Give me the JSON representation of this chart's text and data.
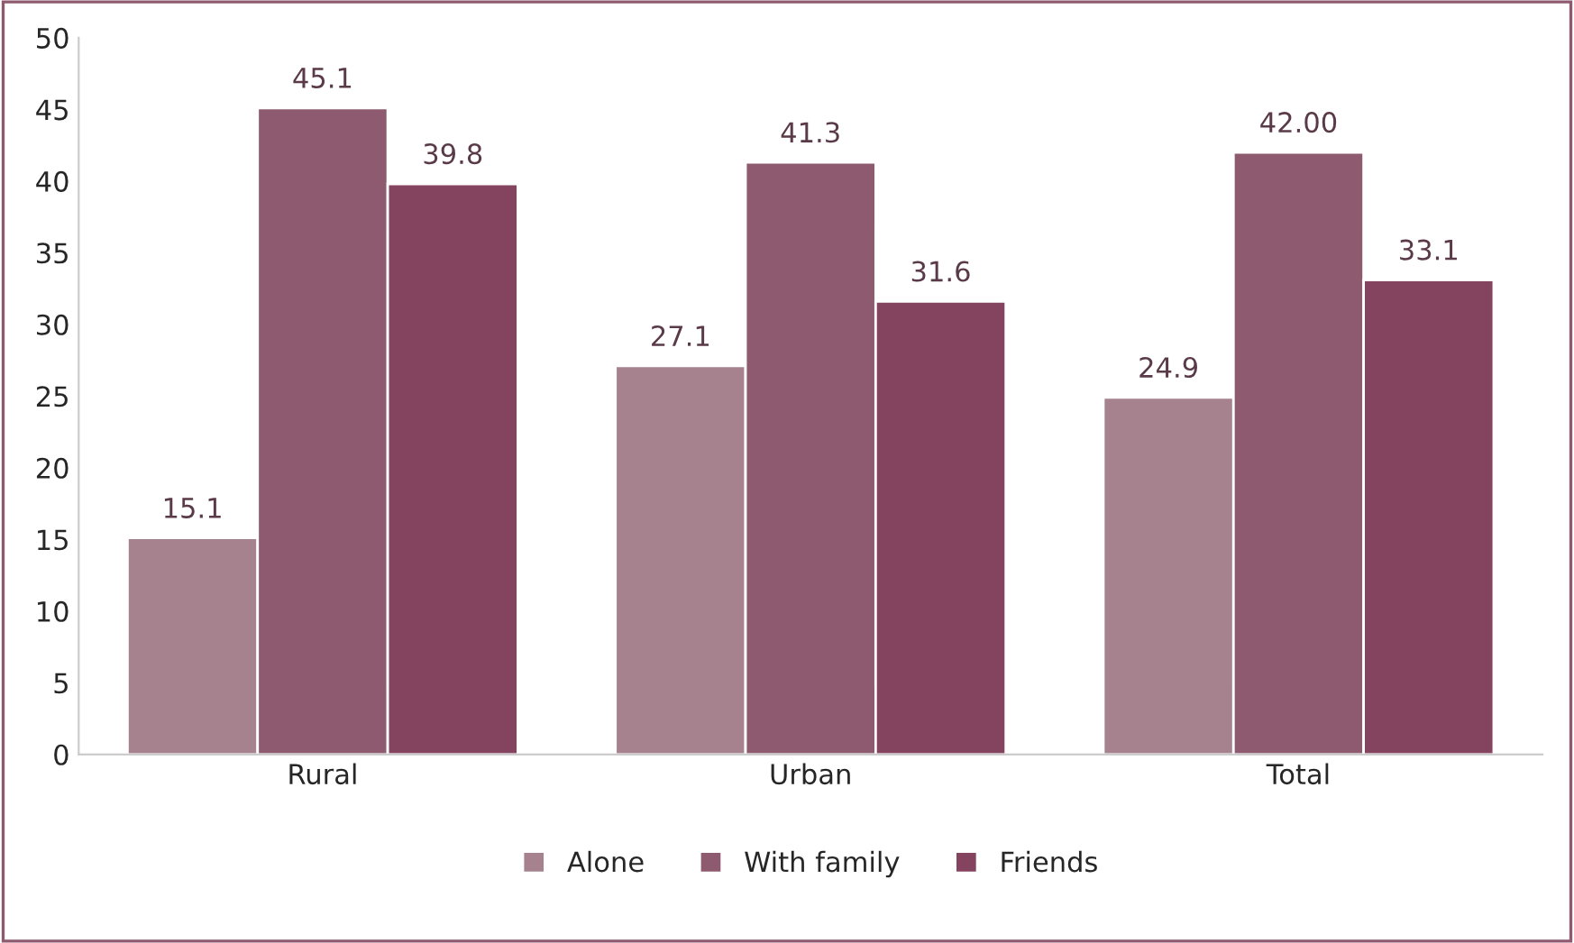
{
  "chart_data": {
    "type": "bar",
    "categories": [
      "Rural",
      "Urban",
      "Total"
    ],
    "series": [
      {
        "name": "Alone",
        "color": "#a6828e",
        "values": [
          15.1,
          27.1,
          24.9
        ],
        "value_labels": [
          "15.1",
          "27.1",
          "24.9"
        ]
      },
      {
        "name": "With family",
        "color": "#8e5a6f",
        "values": [
          45.1,
          41.3,
          42.0
        ],
        "value_labels": [
          "45.1",
          "41.3",
          "42.00"
        ]
      },
      {
        "name": "Friends",
        "color": "#84435e",
        "values": [
          39.8,
          31.6,
          33.1
        ],
        "value_labels": [
          "39.8",
          "31.6",
          "33.1"
        ]
      }
    ],
    "ylim": [
      0,
      50
    ],
    "yticks": [
      0,
      5,
      10,
      15,
      20,
      25,
      30,
      35,
      40,
      45,
      50
    ],
    "grid": false,
    "legend": "bottom"
  }
}
